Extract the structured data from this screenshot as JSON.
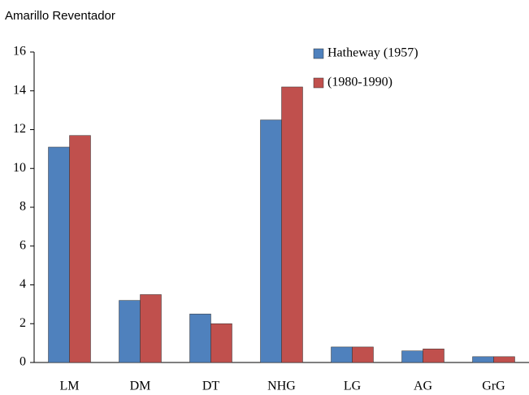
{
  "chart_data": {
    "type": "bar",
    "title": "Amarillo Reventador",
    "categories": [
      "LM",
      "DM",
      "DT",
      "NHG",
      "LG",
      "AG",
      "GrG"
    ],
    "series": [
      {
        "name": "Hatheway (1957)",
        "color": "#4f81bd",
        "values": [
          11.1,
          3.2,
          2.5,
          12.5,
          0.8,
          0.6,
          0.3
        ]
      },
      {
        "name": "(1980-1990)",
        "color": "#c0504d",
        "values": [
          11.7,
          3.5,
          2.0,
          14.2,
          0.8,
          0.7,
          0.3
        ]
      }
    ],
    "ylim": [
      0,
      16
    ],
    "yticks": [
      0,
      2,
      4,
      6,
      8,
      10,
      12,
      14,
      16
    ],
    "grid": false,
    "legend": "top-right"
  }
}
